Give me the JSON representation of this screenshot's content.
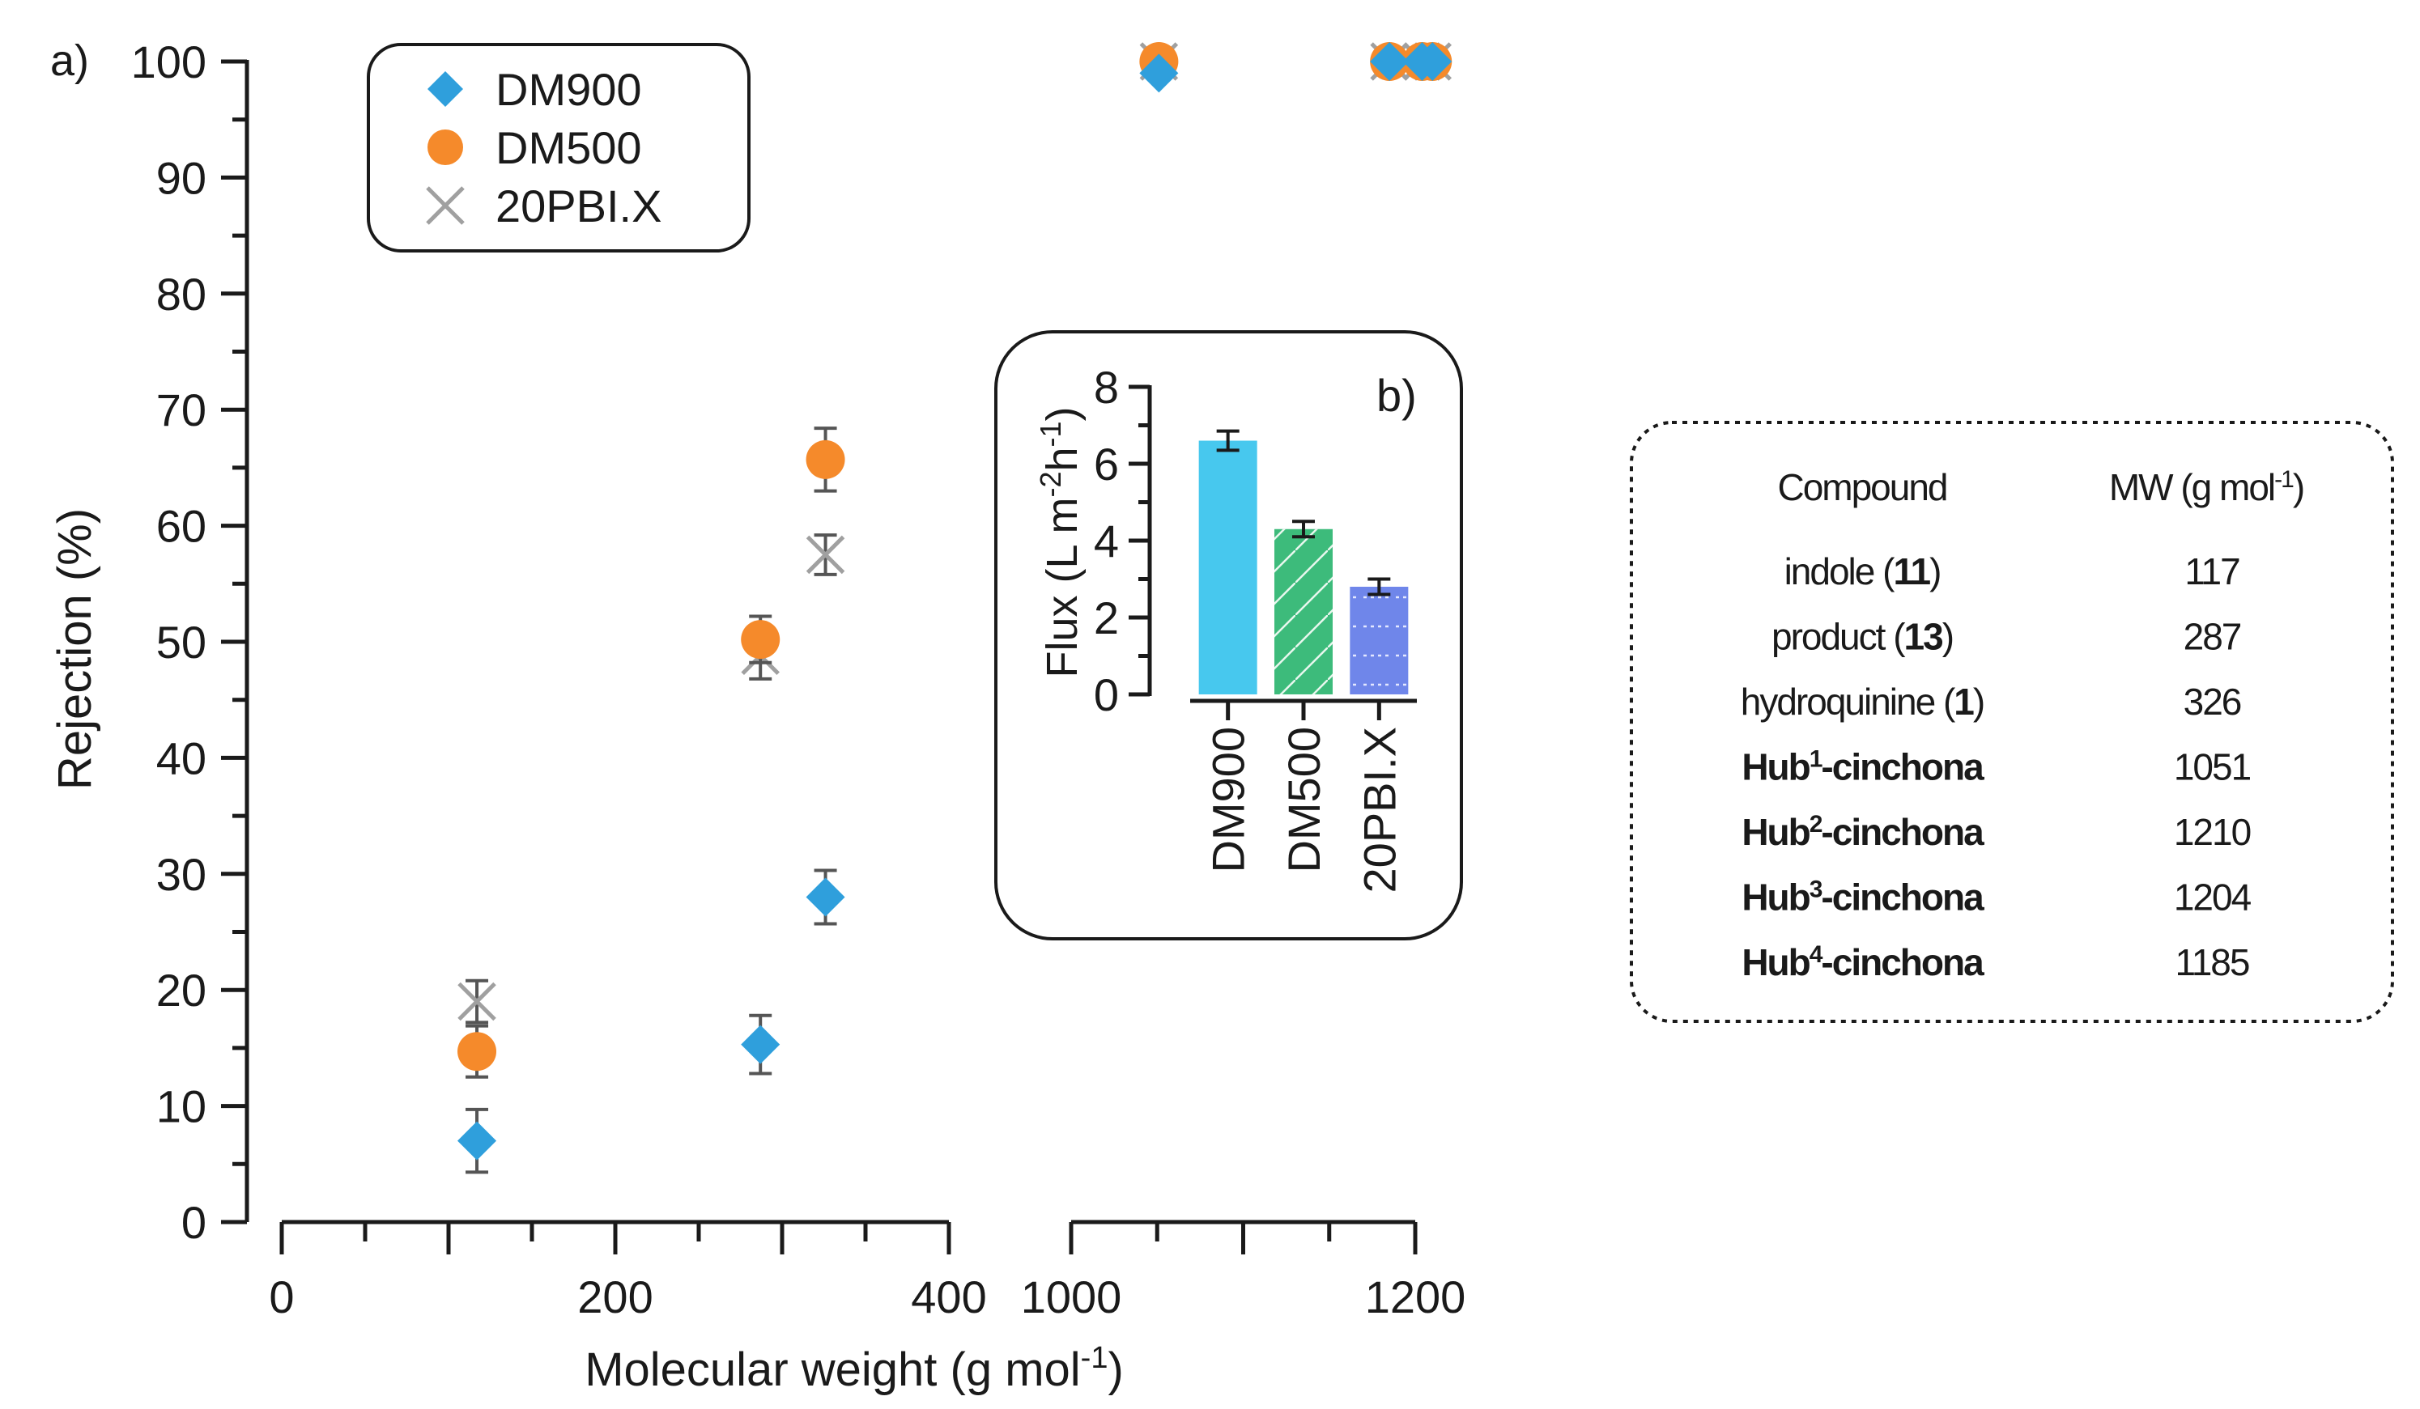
{
  "panel_a_label": "a)",
  "panel_b_label": "b)",
  "chart_data": [
    {
      "type": "scatter",
      "name": "rejection-vs-mw",
      "xlabel": "Molecular weight (g mol",
      "xlabel_sup": "-1",
      "xlabel_close": ")",
      "ylabel": "Rejection (%)",
      "xlim_left": [
        0,
        400
      ],
      "xlim_right": [
        1000,
        1200
      ],
      "x_break": true,
      "ylim": [
        0,
        100
      ],
      "x_ticks_left": [
        0,
        200,
        400
      ],
      "x_ticks_right": [
        1000,
        1200
      ],
      "y_ticks": [
        0,
        10,
        20,
        30,
        40,
        50,
        60,
        70,
        80,
        90,
        100
      ],
      "legend": {
        "position": "top-left",
        "entries": [
          {
            "label": "DM900",
            "marker": "diamond",
            "color": "#2f9fdc"
          },
          {
            "label": "DM500",
            "marker": "circle",
            "color": "#f58a2b"
          },
          {
            "label": "20PBI.X",
            "marker": "cross",
            "color": "#a0a0a0"
          }
        ]
      },
      "series": [
        {
          "name": "DM900",
          "marker": "diamond",
          "color": "#2f9fdc",
          "x": [
            117,
            287,
            326,
            1051,
            1185,
            1204,
            1210
          ],
          "y": [
            7,
            15.3,
            28,
            99,
            100,
            100,
            100
          ],
          "err": [
            2.7,
            2.5,
            2.3,
            0.6,
            0.5,
            0.5,
            0.5
          ]
        },
        {
          "name": "DM500",
          "marker": "circle",
          "color": "#f58a2b",
          "x": [
            117,
            287,
            326,
            1051,
            1185,
            1204,
            1210
          ],
          "y": [
            14.7,
            50.2,
            65.7,
            100,
            100,
            100,
            100
          ],
          "err": [
            2.2,
            2.0,
            2.7,
            0.5,
            0.5,
            0.5,
            0.5
          ]
        },
        {
          "name": "20PBI.X",
          "marker": "cross",
          "color": "#a0a0a0",
          "x": [
            117,
            287,
            326,
            1051,
            1185,
            1204,
            1210
          ],
          "y": [
            19,
            48.8,
            57.5,
            100,
            100,
            100,
            100
          ],
          "err": [
            1.8,
            2.0,
            1.7,
            0.5,
            0.5,
            0.5,
            0.5
          ]
        }
      ]
    },
    {
      "type": "bar",
      "name": "flux-inset",
      "title": "b)",
      "ylabel": "Flux (L m",
      "ylabel_sup1": "-2",
      "ylabel_mid": "h",
      "ylabel_sup2": "-1",
      "ylabel_close": ")",
      "ylim": [
        0,
        8
      ],
      "y_ticks": [
        0,
        2,
        4,
        6,
        8
      ],
      "categories": [
        "DM900",
        "DM500",
        "20PBI.X"
      ],
      "values": [
        6.6,
        4.3,
        2.8
      ],
      "errors": [
        0.25,
        0.2,
        0.2
      ],
      "colors": [
        "#47c8ee",
        "#3dbb7b",
        "#6f86ea"
      ],
      "patterns": [
        "none",
        "diagonal-lines",
        "dotted-lines"
      ]
    }
  ],
  "table": {
    "headers": [
      "Compound",
      "MW (g mol",
      "-1",
      ")"
    ],
    "rows": [
      {
        "name": "indole (",
        "bold": "11",
        "tail": ")",
        "sup": "",
        "mw": "117",
        "strong": false
      },
      {
        "name": "product (",
        "bold": "13",
        "tail": ")",
        "sup": "",
        "mw": "287",
        "strong": false
      },
      {
        "name": "hydroquinine (",
        "bold": "1",
        "tail": ")",
        "sup": "",
        "mw": "326",
        "strong": false
      },
      {
        "name": "Hub",
        "bold": "",
        "tail": "-cinchona",
        "sup": "1",
        "mw": "1051",
        "strong": true
      },
      {
        "name": "Hub",
        "bold": "",
        "tail": "-cinchona",
        "sup": "2",
        "mw": "1210",
        "strong": true
      },
      {
        "name": "Hub",
        "bold": "",
        "tail": "-cinchona",
        "sup": "3",
        "mw": "1204",
        "strong": true
      },
      {
        "name": "Hub",
        "bold": "",
        "tail": "-cinchona",
        "sup": "4",
        "mw": "1185",
        "strong": true
      }
    ]
  }
}
